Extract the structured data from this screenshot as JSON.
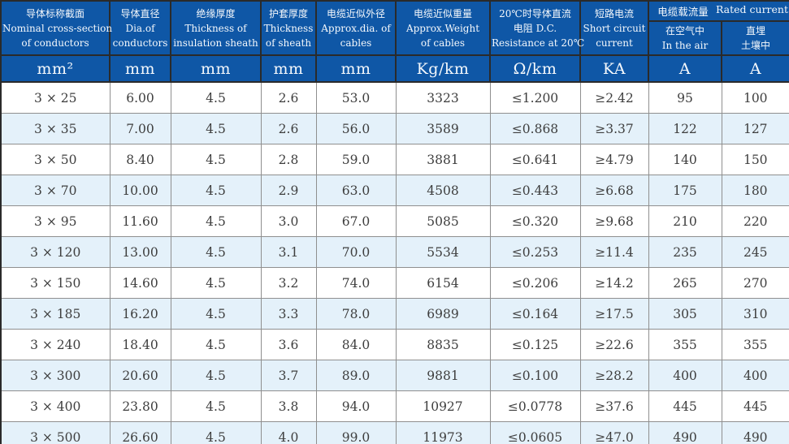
{
  "table": {
    "title_semantic": "cable-specification-table",
    "header_group": {
      "zh": "电缆载流量",
      "en": "Rated current"
    },
    "columns": [
      {
        "id": "cross-section",
        "lines": [
          "导体标称截面",
          "Nominal cross-section",
          "of conductors"
        ],
        "unit": "mm²"
      },
      {
        "id": "conductor-diameter",
        "lines": [
          "导体直径",
          "Dia.of",
          "conductors"
        ],
        "unit": "mm"
      },
      {
        "id": "insulation-thickness",
        "lines": [
          "绝缘厚度",
          "Thickness of",
          "insulation sheath"
        ],
        "unit": "mm"
      },
      {
        "id": "sheath-thickness",
        "lines": [
          "护套厚度",
          "Thickness",
          "of sheath"
        ],
        "unit": "mm"
      },
      {
        "id": "approx-diameter",
        "lines": [
          "电缆近似外径",
          "Approx.dia. of",
          "cables"
        ],
        "unit": "mm"
      },
      {
        "id": "approx-weight",
        "lines": [
          "电缆近似重量",
          "Approx.Weight",
          "of cables"
        ],
        "unit": "Kg/km"
      },
      {
        "id": "dc-resistance",
        "lines": [
          "20℃时导体直流",
          "电阻 D.C.",
          "Resistance at 20℃"
        ],
        "unit": "Ω/km"
      },
      {
        "id": "short-circuit-current",
        "lines": [
          "短路电流",
          "Short circuit",
          "current"
        ],
        "unit": "KA"
      },
      {
        "id": "ampacity-in-air",
        "lines": [
          "在空气中",
          "In the air"
        ],
        "unit": "A"
      },
      {
        "id": "ampacity-buried",
        "lines": [
          "直埋",
          "土壤中"
        ],
        "unit": "A"
      }
    ],
    "rows": [
      [
        "3 × 25",
        "6.00",
        "4.5",
        "2.6",
        "53.0",
        "3323",
        "≤1.200",
        "≥2.42",
        "95",
        "100"
      ],
      [
        "3 × 35",
        "7.00",
        "4.5",
        "2.6",
        "56.0",
        "3589",
        "≤0.868",
        "≥3.37",
        "122",
        "127"
      ],
      [
        "3 × 50",
        "8.40",
        "4.5",
        "2.8",
        "59.0",
        "3881",
        "≤0.641",
        "≥4.79",
        "140",
        "150"
      ],
      [
        "3 × 70",
        "10.00",
        "4.5",
        "2.9",
        "63.0",
        "4508",
        "≤0.443",
        "≥6.68",
        "175",
        "180"
      ],
      [
        "3 × 95",
        "11.60",
        "4.5",
        "3.0",
        "67.0",
        "5085",
        "≤0.320",
        "≥9.68",
        "210",
        "220"
      ],
      [
        "3 × 120",
        "13.00",
        "4.5",
        "3.1",
        "70.0",
        "5534",
        "≤0.253",
        "≥11.4",
        "235",
        "245"
      ],
      [
        "3 × 150",
        "14.60",
        "4.5",
        "3.2",
        "74.0",
        "6154",
        "≤0.206",
        "≥14.2",
        "265",
        "270"
      ],
      [
        "3 × 185",
        "16.20",
        "4.5",
        "3.3",
        "78.0",
        "6989",
        "≤0.164",
        "≥17.5",
        "305",
        "310"
      ],
      [
        "3 × 240",
        "18.40",
        "4.5",
        "3.6",
        "84.0",
        "8835",
        "≤0.125",
        "≥22.6",
        "355",
        "355"
      ],
      [
        "3 × 300",
        "20.60",
        "4.5",
        "3.7",
        "89.0",
        "9881",
        "≤0.100",
        "≥28.2",
        "400",
        "400"
      ],
      [
        "3 × 400",
        "23.80",
        "4.5",
        "3.8",
        "94.0",
        "10927",
        "≤0.0778",
        "≥37.6",
        "445",
        "445"
      ],
      [
        "3 × 500",
        "26.60",
        "4.5",
        "4.0",
        "99.0",
        "11973",
        "≤0.0605",
        "≥47.0",
        "490",
        "490"
      ]
    ]
  },
  "colors": {
    "header_bg": "#0f57a6",
    "header_text": "#f4f8fc",
    "row_alt": "#e4f1fa",
    "row_bg": "#ffffff",
    "grid": "#8f8f8f",
    "frame": "#2a2a2a",
    "body_text": "#3e3e3e"
  }
}
